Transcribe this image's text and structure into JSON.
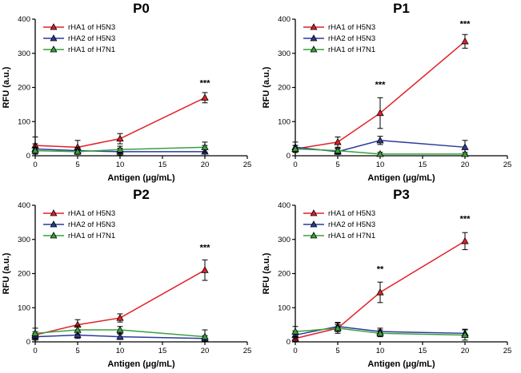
{
  "figure": {
    "xlabel": "Antigen (μg/mL)",
    "ylabel": "RFU (a.u.)",
    "xlim": [
      0,
      25
    ],
    "ylim": [
      0,
      400
    ],
    "xticks": [
      0,
      5,
      10,
      15,
      20,
      25
    ],
    "yticks": [
      0,
      100,
      200,
      300,
      400
    ],
    "legend_position": "top-left",
    "grid": false,
    "marker": "triangle-up",
    "error_bar_color": "#000000",
    "colors": {
      "red": "#e22028",
      "blue": "#2b3a9b",
      "green": "#38a13c"
    }
  },
  "chart_data": [
    {
      "type": "line",
      "title": "P0",
      "x": [
        0,
        5,
        10,
        20
      ],
      "series": [
        {
          "name": "rHA1 of H5N3",
          "color": "red",
          "values": [
            30,
            25,
            50,
            170
          ],
          "errors": [
            25,
            20,
            15,
            15
          ]
        },
        {
          "name": "rHA2 of H5N3",
          "color": "blue",
          "values": [
            20,
            15,
            12,
            12
          ],
          "errors": [
            15,
            10,
            10,
            18
          ]
        },
        {
          "name": "rHA1 of H7N1",
          "color": "green",
          "values": [
            15,
            12,
            18,
            25
          ],
          "errors": [
            10,
            8,
            10,
            15
          ]
        }
      ],
      "annotations": [
        {
          "x": 20,
          "y": 205,
          "text": "***"
        }
      ]
    },
    {
      "type": "line",
      "title": "P1",
      "x": [
        0,
        5,
        10,
        20
      ],
      "series": [
        {
          "name": "rHA1 of H5N3",
          "color": "red",
          "values": [
            20,
            40,
            125,
            335
          ],
          "errors": [
            10,
            15,
            45,
            20
          ]
        },
        {
          "name": "rHA2 of H5N3",
          "color": "blue",
          "values": [
            25,
            12,
            45,
            25
          ],
          "errors": [
            15,
            8,
            12,
            20
          ]
        },
        {
          "name": "rHA1 of H7N1",
          "color": "green",
          "values": [
            20,
            15,
            5,
            5
          ],
          "errors": [
            10,
            8,
            5,
            5
          ]
        }
      ],
      "annotations": [
        {
          "x": 10,
          "y": 200,
          "text": "***"
        },
        {
          "x": 20,
          "y": 378,
          "text": "***"
        }
      ]
    },
    {
      "type": "line",
      "title": "P2",
      "x": [
        0,
        5,
        10,
        20
      ],
      "series": [
        {
          "name": "rHA1 of H5N3",
          "color": "red",
          "values": [
            20,
            50,
            70,
            210
          ],
          "errors": [
            10,
            15,
            12,
            30
          ]
        },
        {
          "name": "rHA2 of H5N3",
          "color": "blue",
          "values": [
            15,
            20,
            15,
            10
          ],
          "errors": [
            10,
            10,
            8,
            8
          ]
        },
        {
          "name": "rHA1 of H7N1",
          "color": "green",
          "values": [
            25,
            35,
            35,
            15
          ],
          "errors": [
            15,
            12,
            10,
            20
          ]
        }
      ],
      "annotations": [
        {
          "x": 20,
          "y": 268,
          "text": "***"
        }
      ]
    },
    {
      "type": "line",
      "title": "P3",
      "x": [
        0,
        5,
        10,
        20
      ],
      "series": [
        {
          "name": "rHA1 of H5N3",
          "color": "red",
          "values": [
            10,
            40,
            145,
            295
          ],
          "errors": [
            8,
            15,
            30,
            25
          ]
        },
        {
          "name": "rHA2 of H5N3",
          "color": "blue",
          "values": [
            20,
            45,
            30,
            25
          ],
          "errors": [
            12,
            12,
            10,
            12
          ]
        },
        {
          "name": "rHA1 of H7N1",
          "color": "green",
          "values": [
            30,
            40,
            25,
            20
          ],
          "errors": [
            15,
            10,
            10,
            15
          ]
        }
      ],
      "annotations": [
        {
          "x": 10,
          "y": 205,
          "text": "**"
        },
        {
          "x": 20,
          "y": 352,
          "text": "***"
        }
      ]
    }
  ]
}
